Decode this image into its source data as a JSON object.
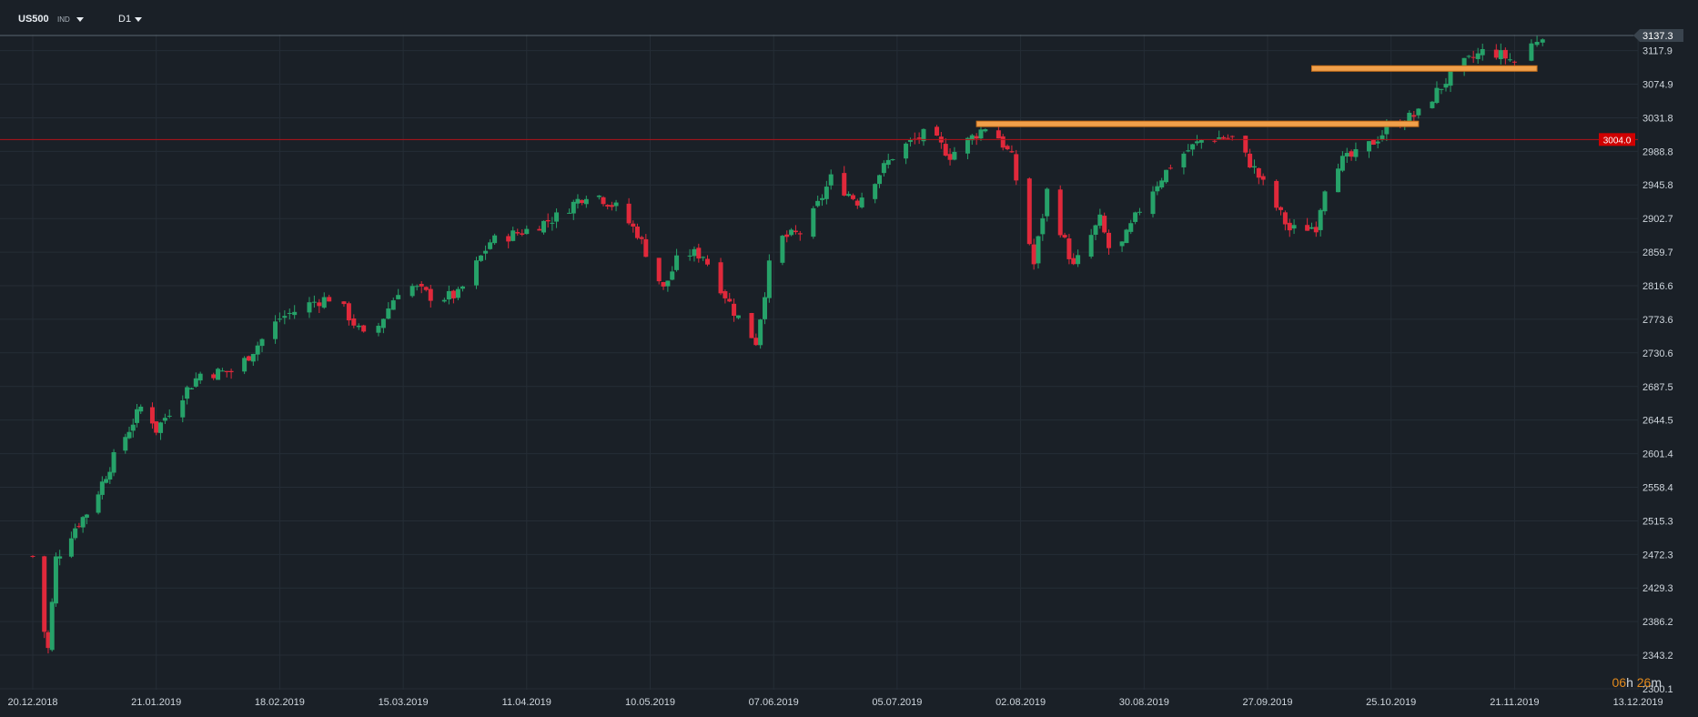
{
  "header": {
    "symbol": "US500",
    "instrument_type": "IND",
    "timeframe": "D1"
  },
  "timer": {
    "hours": "06",
    "hours_unit": "h",
    "minutes": "26",
    "minutes_unit": "m"
  },
  "colors": {
    "background": "#1a2027",
    "up": "#26a269",
    "down": "#e0293b",
    "grid": "#252d36",
    "zone": "#f0a04b",
    "level_line": "#b3121a",
    "price_tag": "#d00000"
  },
  "chart_data": {
    "type": "candlestick",
    "y_ticks": [
      3117.9,
      3074.9,
      3031.8,
      2988.8,
      2945.8,
      2902.7,
      2859.7,
      2816.6,
      2773.6,
      2730.6,
      2687.5,
      2644.5,
      2601.4,
      2558.4,
      2515.3,
      2472.3,
      2429.3,
      2386.2,
      2343.2,
      2300.1
    ],
    "x_ticks": [
      "20.12.2018",
      "21.01.2019",
      "18.02.2019",
      "15.03.2019",
      "11.04.2019",
      "10.05.2019",
      "07.06.2019",
      "05.07.2019",
      "02.08.2019",
      "30.08.2019",
      "27.09.2019",
      "25.10.2019",
      "21.11.2019",
      "13.12.2019"
    ],
    "ylim": [
      2300.1,
      3137.3
    ],
    "last_price": 3137.3,
    "horizontal_level": 3004.0,
    "resistance_zones": [
      {
        "from": "23.07.2019",
        "to": "31.10.2019",
        "price": 3024
      },
      {
        "from": "07.10.2019",
        "to": "25.11.2019",
        "price": 3095
      }
    ],
    "close_path": [
      [
        "20.12.2018",
        2470
      ],
      [
        "21.12.2018",
        2420
      ],
      [
        "24.12.2018",
        2351
      ],
      [
        "26.12.2018",
        2467
      ],
      [
        "31.12.2018",
        2507
      ],
      [
        "04.01.2019",
        2532
      ],
      [
        "10.01.2019",
        2596
      ],
      [
        "18.01.2019",
        2670
      ],
      [
        "21.01.2019",
        2632
      ],
      [
        "25.01.2019",
        2664
      ],
      [
        "31.01.2019",
        2704
      ],
      [
        "08.02.2019",
        2707
      ],
      [
        "18.02.2019",
        2775
      ],
      [
        "25.02.2019",
        2796
      ],
      [
        "01.03.2019",
        2803
      ],
      [
        "08.03.2019",
        2743
      ],
      [
        "15.03.2019",
        2822
      ],
      [
        "22.03.2019",
        2800
      ],
      [
        "27.03.2019",
        2805
      ],
      [
        "03.04.2019",
        2873
      ],
      [
        "11.04.2019",
        2888
      ],
      [
        "18.04.2019",
        2905
      ],
      [
        "26.04.2019",
        2939
      ],
      [
        "02.05.2019",
        2917
      ],
      [
        "07.05.2019",
        2884
      ],
      [
        "13.05.2019",
        2812
      ],
      [
        "17.05.2019",
        2860
      ],
      [
        "22.05.2019",
        2856
      ],
      [
        "29.05.2019",
        2784
      ],
      [
        "03.06.2019",
        2745
      ],
      [
        "07.06.2019",
        2874
      ],
      [
        "14.06.2019",
        2886
      ],
      [
        "20.06.2019",
        2954
      ],
      [
        "26.06.2019",
        2925
      ],
      [
        "05.07.2019",
        2990
      ],
      [
        "12.07.2019",
        3013
      ],
      [
        "17.07.2019",
        2984
      ],
      [
        "26.07.2019",
        3025
      ],
      [
        "31.07.2019",
        2980
      ],
      [
        "05.08.2019",
        2844
      ],
      [
        "08.08.2019",
        2938
      ],
      [
        "14.08.2019",
        2840
      ],
      [
        "20.08.2019",
        2901
      ],
      [
        "23.08.2019",
        2847
      ],
      [
        "30.08.2019",
        2926
      ],
      [
        "06.09.2019",
        2978
      ],
      [
        "13.09.2019",
        3007
      ],
      [
        "19.09.2019",
        3006
      ],
      [
        "24.09.2019",
        2966
      ],
      [
        "02.10.2019",
        2888
      ],
      [
        "08.10.2019",
        2893
      ],
      [
        "11.10.2019",
        2970
      ],
      [
        "18.10.2019",
        2986
      ],
      [
        "25.10.2019",
        3022
      ],
      [
        "31.10.2019",
        3037
      ],
      [
        "08.11.2019",
        3093
      ],
      [
        "15.11.2019",
        3120
      ],
      [
        "21.11.2019",
        3104
      ],
      [
        "26.11.2019",
        3140
      ]
    ]
  }
}
